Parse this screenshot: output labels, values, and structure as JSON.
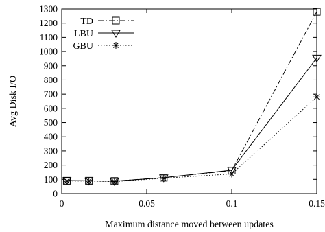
{
  "chart_data": {
    "type": "line",
    "xlabel": "Maximum distance moved between updates",
    "ylabel": "Avg Disk I/O",
    "xlim": [
      0,
      0.15
    ],
    "ylim": [
      0,
      1300
    ],
    "xticks": [
      {
        "value": 0,
        "label": "0"
      },
      {
        "value": 0.05,
        "label": "0.05"
      },
      {
        "value": 0.1,
        "label": "0.1"
      },
      {
        "value": 0.15,
        "label": "0.15"
      }
    ],
    "yticks": [
      0,
      100,
      200,
      300,
      400,
      500,
      600,
      700,
      800,
      900,
      1000,
      1100,
      1200,
      1300
    ],
    "grid": false,
    "legend_position": "top-left",
    "series": [
      {
        "name": "TD",
        "marker": "square",
        "dash": "dash-dot",
        "x": [
          0.003,
          0.016,
          0.031,
          0.06,
          0.1,
          0.15
        ],
        "y": [
          90,
          90,
          88,
          112,
          162,
          1280
        ]
      },
      {
        "name": "LBU",
        "marker": "triangle-down",
        "dash": "solid",
        "x": [
          0.003,
          0.016,
          0.031,
          0.06,
          0.1,
          0.15
        ],
        "y": [
          92,
          90,
          87,
          112,
          165,
          955
        ]
      },
      {
        "name": "GBU",
        "marker": "asterisk",
        "dash": "dotted",
        "x": [
          0.003,
          0.016,
          0.031,
          0.06,
          0.1,
          0.15
        ],
        "y": [
          88,
          88,
          84,
          108,
          138,
          680
        ]
      }
    ]
  }
}
